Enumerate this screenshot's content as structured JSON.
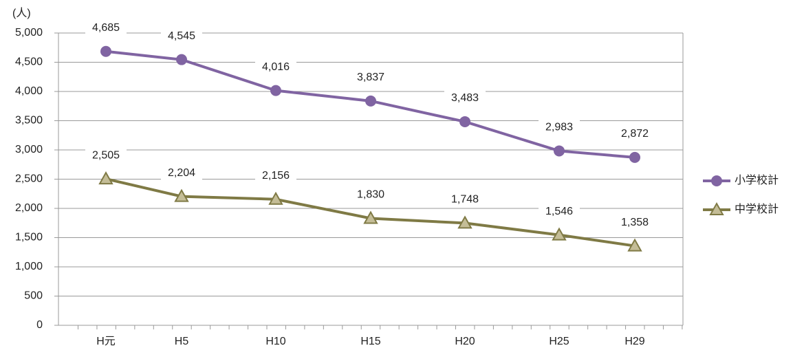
{
  "chart_data": {
    "type": "line",
    "y_label": "(人)",
    "categories": [
      "H元",
      "H5",
      "H10",
      "H15",
      "H20",
      "H25",
      "H29"
    ],
    "series": [
      {
        "name": "小学校計",
        "color": "#8064a2",
        "marker": "circle",
        "values": [
          4685,
          4545,
          4016,
          3837,
          3483,
          2983,
          2872
        ],
        "value_labels": [
          "4,685",
          "4,545",
          "4,016",
          "3,837",
          "3,483",
          "2,983",
          "2,872"
        ]
      },
      {
        "name": "中学校計",
        "color": "#7f7a45",
        "marker": "triangle",
        "values": [
          2505,
          2204,
          2156,
          1830,
          1748,
          1546,
          1358
        ],
        "value_labels": [
          "2,505",
          "2,204",
          "2,156",
          "1,830",
          "1,748",
          "1,546",
          "1,358"
        ]
      }
    ],
    "ylim": [
      0,
      5000
    ],
    "yticks": [
      0,
      500,
      {
        "value": 1000,
        "label": "1,000"
      },
      {
        "value": 1500,
        "label": "1,500"
      },
      {
        "value": 2000,
        "label": "2,000"
      },
      {
        "value": 2500,
        "label": "2,500"
      },
      {
        "value": 3000,
        "label": "3,000"
      },
      {
        "value": 3500,
        "label": "3,500"
      },
      {
        "value": 4000,
        "label": "4,000"
      },
      {
        "value": 4500,
        "label": "4,500"
      },
      {
        "value": 5000,
        "label": "5,000"
      }
    ],
    "grid": true,
    "legend": "right"
  }
}
